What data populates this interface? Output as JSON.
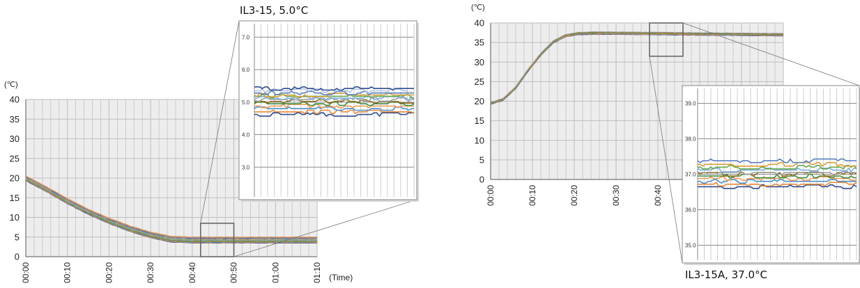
{
  "chart_data": [
    {
      "id": "left-main",
      "type": "line",
      "ylabel": "(℃)",
      "xlabel": "(Time)",
      "ylim": [
        0,
        40
      ],
      "y_ticks": [
        "0",
        "5",
        "10",
        "15",
        "20",
        "25",
        "30",
        "35",
        "40"
      ],
      "x_ticks": [
        "00:00",
        "00:10",
        "00:20",
        "00:30",
        "00:40",
        "00:50",
        "01:00",
        "01:10"
      ],
      "grid": true,
      "profile": {
        "x_minutes": [
          0,
          5,
          10,
          15,
          20,
          25,
          30,
          35,
          40,
          45,
          50,
          55,
          60,
          65,
          70
        ],
        "y": [
          20.0,
          17.2,
          14.2,
          11.5,
          9.2,
          7.2,
          5.6,
          4.5,
          4.3,
          4.3,
          4.3,
          4.3,
          4.3,
          4.3,
          4.3
        ]
      },
      "series_end_values": [
        3.5,
        3.6,
        3.7,
        3.8,
        3.9,
        4.0,
        4.1,
        4.2,
        4.3,
        4.4,
        4.5,
        4.6,
        4.7,
        4.8,
        4.9,
        5.0
      ],
      "zoom_box": {
        "x_minutes": [
          42,
          50
        ],
        "y": [
          0,
          8.5
        ]
      }
    },
    {
      "id": "left-zoom",
      "type": "line",
      "title": "IL3-15, 5.0°C",
      "ylim": [
        2.0,
        7.5
      ],
      "y_ticks": [
        "3.0",
        "4.0",
        "5.0",
        "6.0",
        "7.0"
      ],
      "grid": true,
      "series_levels": [
        4.62,
        4.7,
        4.8,
        4.88,
        4.95,
        5.02,
        5.08,
        5.12,
        5.18,
        5.22,
        5.28,
        5.35,
        5.42
      ]
    },
    {
      "id": "right-main",
      "type": "line",
      "ylabel": "(℃)",
      "ylim": [
        0,
        40
      ],
      "y_ticks": [
        "0",
        "5",
        "10",
        "15",
        "20",
        "25",
        "30",
        "35",
        "40"
      ],
      "x_ticks": [
        "00:00",
        "00:10",
        "00:20",
        "00:30",
        "00:40"
      ],
      "grid": true,
      "profile": {
        "x_minutes": [
          0,
          3,
          6,
          9,
          12,
          15,
          18,
          21,
          25,
          30,
          40,
          50,
          60,
          70
        ],
        "y": [
          19.5,
          20.5,
          23.5,
          28.0,
          32.0,
          35.2,
          36.8,
          37.3,
          37.4,
          37.4,
          37.3,
          37.2,
          37.1,
          37.0
        ]
      },
      "series_end_values": [
        36.7,
        36.8,
        36.9,
        37.0,
        37.1,
        37.2,
        37.3
      ],
      "zoom_box": {
        "x_minutes": [
          38,
          46
        ],
        "y": [
          31.5,
          40
        ]
      }
    },
    {
      "id": "right-zoom",
      "type": "line",
      "title": "IL3-15A, 37.0°C",
      "ylim": [
        34.5,
        39.5
      ],
      "y_ticks": [
        "35.0",
        "36.0",
        "37.0",
        "38.0",
        "39.0"
      ],
      "grid": true,
      "series_levels": [
        36.65,
        36.72,
        36.8,
        36.88,
        36.95,
        37.0,
        37.05,
        37.12,
        37.2,
        37.28,
        37.38
      ]
    }
  ],
  "colors": {
    "series": [
      "#2f4d8f",
      "#e8893a",
      "#4f8fc9",
      "#ef9c5b",
      "#3f8a3b",
      "#8a6a1a",
      "#a0a0a0",
      "#7fb2e0",
      "#6aa84f",
      "#d9a03a",
      "#5b7fbf",
      "#b0c4de"
    ],
    "grid": "#bdbdbd",
    "plot_bg": "#ededed",
    "axis": "#555555"
  }
}
